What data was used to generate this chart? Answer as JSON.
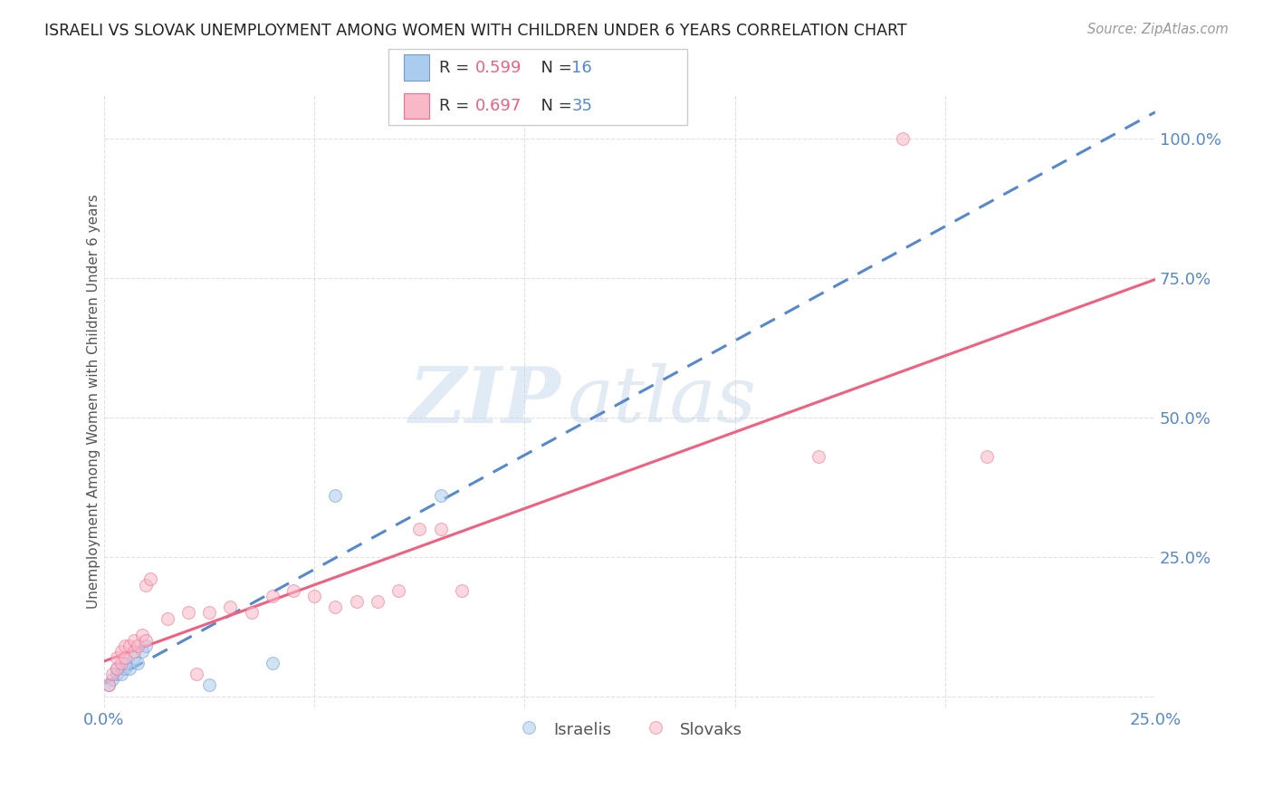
{
  "title": "ISRAELI VS SLOVAK UNEMPLOYMENT AMONG WOMEN WITH CHILDREN UNDER 6 YEARS CORRELATION CHART",
  "source": "Source: ZipAtlas.com",
  "ylabel": "Unemployment Among Women with Children Under 6 years",
  "watermark_zip": "ZIP",
  "watermark_atlas": "atlas",
  "xlim": [
    0.0,
    0.25
  ],
  "ylim": [
    -0.02,
    1.08
  ],
  "xticks": [
    0.0,
    0.05,
    0.1,
    0.15,
    0.2,
    0.25
  ],
  "yticks": [
    0.0,
    0.25,
    0.5,
    0.75,
    1.0
  ],
  "ytick_labels": [
    "",
    "25.0%",
    "50.0%",
    "75.0%",
    "100.0%"
  ],
  "xtick_labels": [
    "0.0%",
    "",
    "",
    "",
    "",
    "25.0%"
  ],
  "title_color": "#222222",
  "source_color": "#999999",
  "axis_label_color": "#555555",
  "tick_color": "#5588cc",
  "grid_color": "#e0e0e0",
  "israeli_dots": [
    [
      0.001,
      0.02
    ],
    [
      0.002,
      0.03
    ],
    [
      0.003,
      0.04
    ],
    [
      0.003,
      0.05
    ],
    [
      0.004,
      0.04
    ],
    [
      0.005,
      0.05
    ],
    [
      0.005,
      0.06
    ],
    [
      0.006,
      0.05
    ],
    [
      0.007,
      0.07
    ],
    [
      0.008,
      0.06
    ],
    [
      0.009,
      0.08
    ],
    [
      0.01,
      0.09
    ],
    [
      0.025,
      0.02
    ],
    [
      0.04,
      0.06
    ],
    [
      0.055,
      0.36
    ],
    [
      0.08,
      0.36
    ]
  ],
  "slovak_dots": [
    [
      0.001,
      0.02
    ],
    [
      0.002,
      0.04
    ],
    [
      0.003,
      0.05
    ],
    [
      0.003,
      0.07
    ],
    [
      0.004,
      0.06
    ],
    [
      0.004,
      0.08
    ],
    [
      0.005,
      0.07
    ],
    [
      0.005,
      0.09
    ],
    [
      0.006,
      0.09
    ],
    [
      0.007,
      0.08
    ],
    [
      0.007,
      0.1
    ],
    [
      0.008,
      0.09
    ],
    [
      0.009,
      0.11
    ],
    [
      0.01,
      0.1
    ],
    [
      0.01,
      0.2
    ],
    [
      0.011,
      0.21
    ],
    [
      0.015,
      0.14
    ],
    [
      0.02,
      0.15
    ],
    [
      0.022,
      0.04
    ],
    [
      0.025,
      0.15
    ],
    [
      0.03,
      0.16
    ],
    [
      0.035,
      0.15
    ],
    [
      0.04,
      0.18
    ],
    [
      0.045,
      0.19
    ],
    [
      0.05,
      0.18
    ],
    [
      0.055,
      0.16
    ],
    [
      0.06,
      0.17
    ],
    [
      0.065,
      0.17
    ],
    [
      0.07,
      0.19
    ],
    [
      0.075,
      0.3
    ],
    [
      0.08,
      0.3
    ],
    [
      0.085,
      0.19
    ],
    [
      0.17,
      0.43
    ],
    [
      0.19,
      1.0
    ],
    [
      0.21,
      0.43
    ]
  ],
  "israeli_line_color": "#5588cc",
  "slovak_line_color": "#f06080",
  "dot_size": 100,
  "dot_alpha": 0.55,
  "israeli_dot_color": "#aaccee",
  "slovak_dot_color": "#f8b8c8",
  "israeli_dot_edge": "#7799cc",
  "slovak_dot_edge": "#f07090"
}
